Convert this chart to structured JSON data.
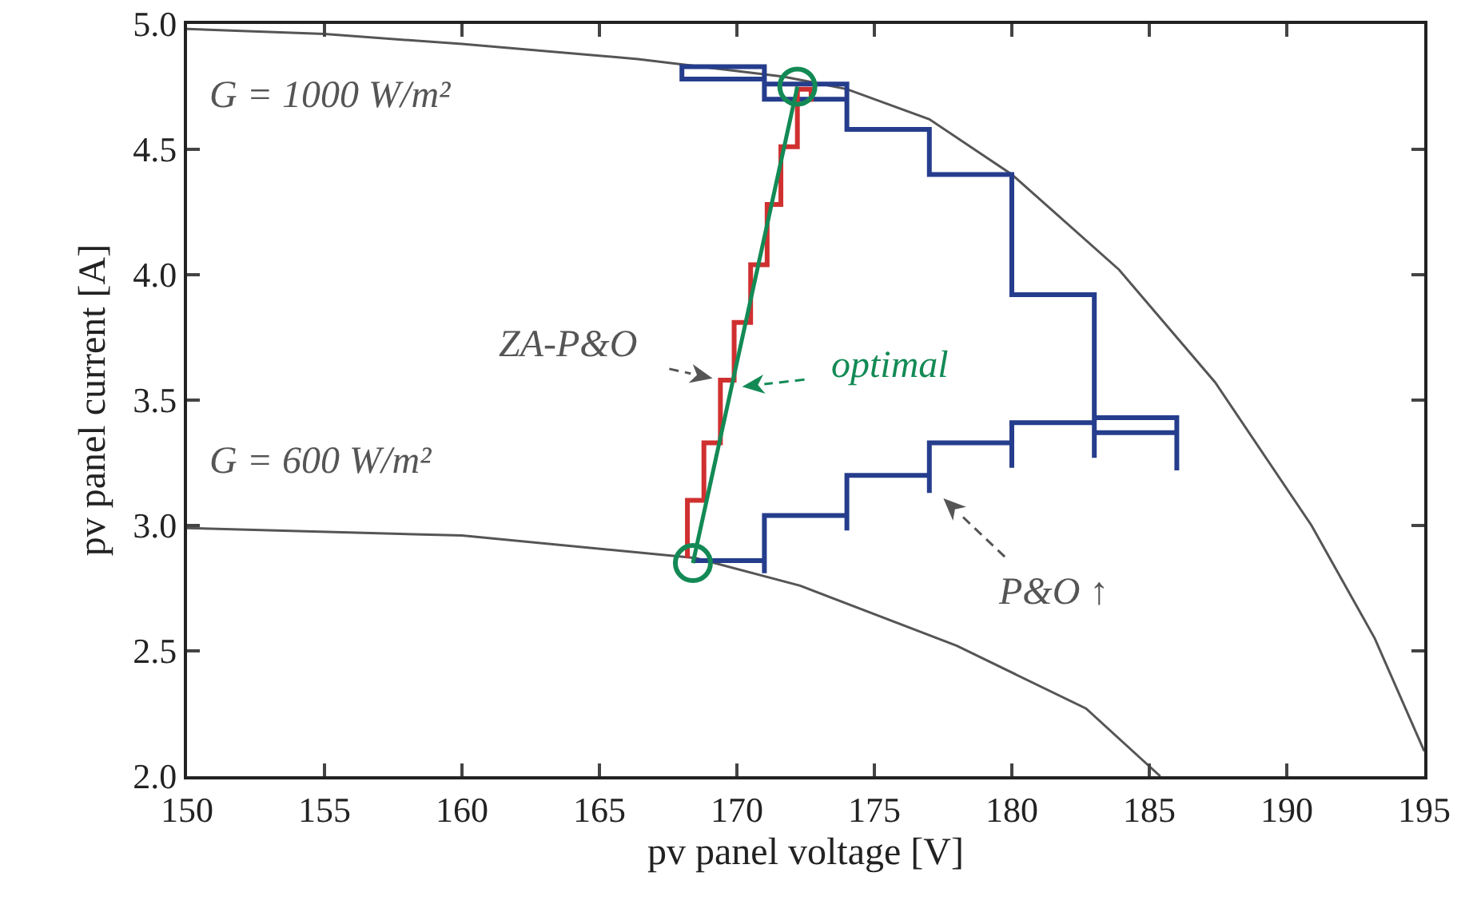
{
  "chart_data": {
    "type": "line",
    "xlabel": "pv panel voltage [V]",
    "ylabel": "pv panel current [A]",
    "xlim": [
      150,
      195
    ],
    "xticks": [
      150,
      155,
      160,
      165,
      170,
      175,
      180,
      185,
      190,
      195
    ],
    "ylim": [
      2.0,
      5.0
    ],
    "yticks": [
      {
        "value": 2,
        "label": "2.0"
      },
      {
        "value": 2.5,
        "label": "2.5"
      },
      {
        "value": 3,
        "label": "3.0"
      },
      {
        "value": 3.5,
        "label": "3.5"
      },
      {
        "value": 4,
        "label": "4.0"
      },
      {
        "value": 4.5,
        "label": "4.5"
      },
      {
        "value": 5,
        "label": "5.0"
      }
    ],
    "annotations": [
      {
        "text": "ZA-P&O",
        "x": 169.4,
        "y": 3.58
      },
      {
        "text": "optimal",
        "x": 169.9,
        "y": 3.55
      },
      {
        "text": "P&O ↑",
        "x": 177.3,
        "y": 3.13
      }
    ],
    "grid": false,
    "marker": "none",
    "line_style": "solid",
    "series": [
      {
        "name": "G = 1000 W/m²",
        "color": "#555555",
        "x": [
          150,
          155,
          160,
          166.4,
          171.7,
          174,
          177,
          180,
          183.9,
          187.4,
          190.9,
          193.2,
          195
        ],
        "values": [
          4.98,
          4.96,
          4.92,
          4.86,
          4.79,
          4.74,
          4.62,
          4.4,
          4.02,
          3.57,
          3.0,
          2.55,
          2.1
        ]
      },
      {
        "name": "G = 600 W/m²",
        "color": "#555555",
        "x": [
          150,
          160,
          168.5,
          172.3,
          178,
          182.7,
          185.4
        ],
        "values": [
          2.99,
          2.96,
          2.87,
          2.76,
          2.52,
          2.27,
          2.0
        ]
      },
      {
        "color": "#253d8c",
        "x": [
          168.4,
          171,
          171,
          171,
          174,
          174,
          174,
          177,
          177,
          177,
          180,
          180,
          180,
          183,
          183,
          183,
          186,
          186,
          186,
          183,
          183,
          180,
          180,
          177,
          177,
          174,
          174,
          171,
          171,
          168,
          168,
          171,
          171,
          174,
          174
        ],
        "values": [
          2.86,
          2.86,
          2.81,
          3.04,
          3.04,
          2.98,
          3.2,
          3.2,
          3.13,
          3.33,
          3.33,
          3.23,
          3.41,
          3.41,
          3.27,
          3.43,
          3.43,
          3.22,
          3.37,
          3.37,
          3.92,
          3.92,
          4.4,
          4.4,
          4.58,
          4.58,
          4.76,
          4.76,
          4.83,
          4.83,
          4.78,
          4.78,
          4.7,
          4.7,
          4.76
        ]
      },
      {
        "color": "#d03030",
        "x": [
          168.2,
          168.2,
          168.8,
          168.8,
          169.4,
          169.4,
          169.9,
          169.9,
          170.5,
          170.5,
          171.1,
          171.1,
          171.6,
          171.6,
          172.2,
          172.2,
          172.7,
          172.7
        ],
        "values": [
          2.87,
          3.1,
          3.1,
          3.33,
          3.33,
          3.58,
          3.58,
          3.81,
          3.81,
          4.04,
          4.04,
          4.28,
          4.28,
          4.51,
          4.51,
          4.74,
          4.74,
          4.69
        ]
      },
      {
        "color": "#138a55",
        "x": [
          168.4,
          169.3,
          169.8,
          170.2,
          171.2,
          172.2
        ],
        "values": [
          2.85,
          3.3,
          3.55,
          3.75,
          4.25,
          4.75
        ]
      },
      {
        "type": "scatter",
        "marker": "circle",
        "color": "#138a55",
        "x": [
          168.4,
          172.2
        ],
        "values": [
          2.85,
          4.75
        ]
      }
    ]
  }
}
